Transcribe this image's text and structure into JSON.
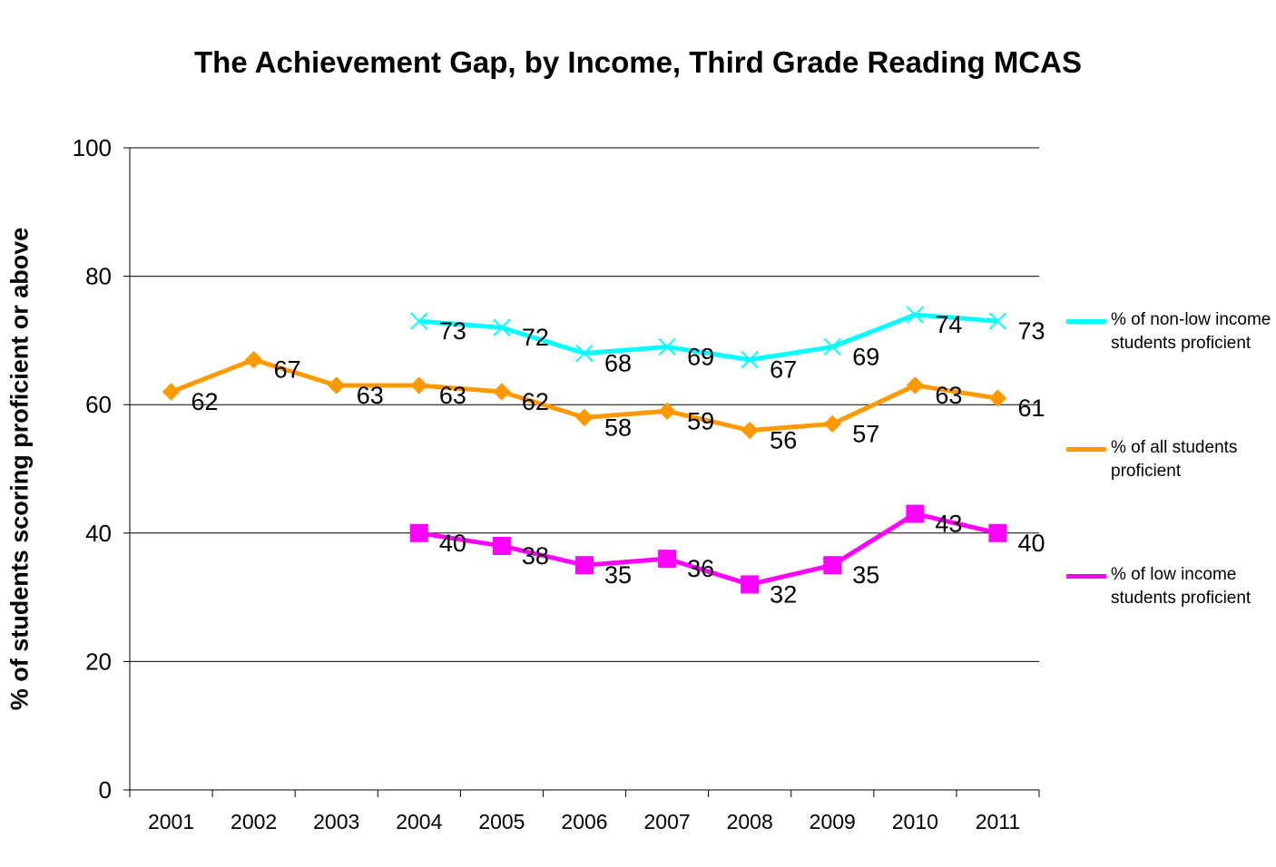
{
  "chart_data": {
    "type": "line",
    "title": "The Achievement Gap, by Income, Third Grade Reading MCAS",
    "xlabel": "",
    "ylabel": "% of students scoring proficient or above",
    "ylim": [
      0,
      100
    ],
    "yticks": [
      0,
      20,
      40,
      60,
      80,
      100
    ],
    "categories": [
      "2001",
      "2002",
      "2003",
      "2004",
      "2005",
      "2006",
      "2007",
      "2008",
      "2009",
      "2010",
      "2011"
    ],
    "grid": "horizontal",
    "legend_position": "right",
    "series": [
      {
        "name": "% of non-low income students proficient",
        "color": "#00ffff",
        "marker": "x",
        "values": [
          null,
          null,
          null,
          73,
          72,
          68,
          69,
          67,
          69,
          74,
          73
        ]
      },
      {
        "name": "% of all students proficient",
        "color": "#ff9900",
        "marker": "diamond",
        "values": [
          62,
          67,
          63,
          63,
          62,
          58,
          59,
          56,
          57,
          63,
          61
        ]
      },
      {
        "name": "% of low income students proficient",
        "color": "#ff00ff",
        "marker": "square",
        "values": [
          null,
          null,
          null,
          40,
          38,
          35,
          36,
          32,
          35,
          43,
          40
        ]
      }
    ]
  }
}
